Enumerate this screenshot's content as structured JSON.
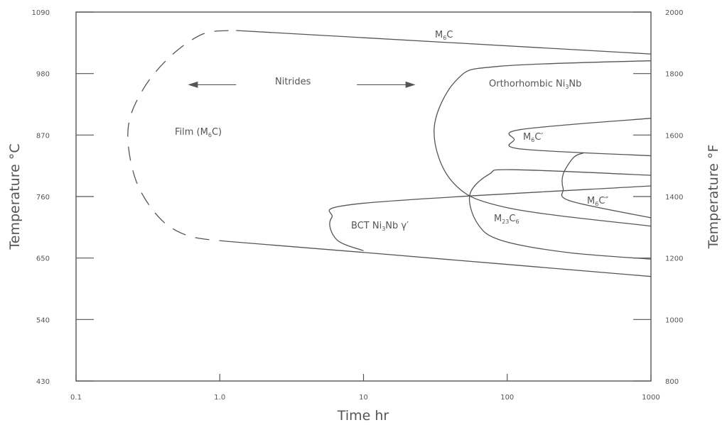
{
  "chart_data": {
    "type": "line",
    "title": "",
    "xlabel": "Time hr",
    "ylabel_left": "Temperature °C",
    "ylabel_right": "Temperature °F",
    "x_scale": "log",
    "xlim": [
      0.1,
      1000
    ],
    "ylim_c": [
      430,
      1090
    ],
    "ylim_f": [
      800,
      2000
    ],
    "x_ticks": [
      "0.1",
      "1.0",
      "10",
      "100",
      "1000"
    ],
    "y_ticks_c": [
      "430",
      "540",
      "650",
      "760",
      "870",
      "980",
      "1090"
    ],
    "y_ticks_f": [
      "800",
      "1000",
      "1200",
      "1400",
      "1600",
      "1800",
      "2000"
    ],
    "grid": false,
    "labels": {
      "m6c": {
        "base": "M",
        "sub": "6",
        "rest": "C"
      },
      "nitrides": "Nitrides",
      "film": {
        "pre": "Film (M",
        "sub": "6",
        "post": "C)"
      },
      "ortho": {
        "pre": "Orthorhombic Ni",
        "sub": "3",
        "post": "Nb"
      },
      "m6c_prime": {
        "base": "M",
        "sub": "6",
        "rest": "C′"
      },
      "m6c_dprime": {
        "base": "M",
        "sub": "6",
        "rest": "C″"
      },
      "m23c6": {
        "base": "M",
        "sub1": "23",
        "mid": "C",
        "sub2": "6"
      },
      "bct": {
        "pre": "BCT  Ni",
        "sub": "3",
        "post": "Nb γ′"
      }
    },
    "series": [
      {
        "id": "film-boundary",
        "style": "dashed",
        "points": [
          [
            1.15,
            1057
          ],
          [
            0.75,
            1050
          ],
          [
            0.45,
            1010
          ],
          [
            0.29,
            950
          ],
          [
            0.23,
            880
          ],
          [
            0.26,
            790
          ],
          [
            0.38,
            722
          ],
          [
            0.6,
            690
          ],
          [
            1.1,
            680
          ]
        ]
      },
      {
        "id": "film-upper",
        "points": [
          [
            1.3,
            1057
          ],
          [
            1000,
            1015
          ]
        ]
      },
      {
        "id": "film-lower",
        "points": [
          [
            1.1,
            680
          ],
          [
            10,
            660
          ],
          [
            1000,
            617
          ]
        ]
      },
      {
        "id": "ortho",
        "points": [
          [
            1000,
            1003
          ],
          [
            88,
            993
          ],
          [
            45,
            970
          ],
          [
            31,
            880
          ],
          [
            42,
            785
          ],
          [
            100,
            740
          ],
          [
            1000,
            707
          ]
        ]
      },
      {
        "id": "m6c-prime",
        "points": [
          [
            1000,
            900
          ],
          [
            125,
            880
          ],
          [
            112,
            862
          ],
          [
            125,
            845
          ],
          [
            1000,
            833
          ]
        ]
      },
      {
        "id": "m6c-dprime",
        "points": [
          [
            340,
            838
          ],
          [
            290,
            830
          ],
          [
            245,
            800
          ],
          [
            245,
            774
          ],
          [
            275,
            752
          ],
          [
            1000,
            722
          ]
        ]
      },
      {
        "id": "m23c6",
        "points": [
          [
            1000,
            798
          ],
          [
            110,
            808
          ],
          [
            75,
            800
          ],
          [
            55,
            764
          ],
          [
            62,
            712
          ],
          [
            90,
            682
          ],
          [
            260,
            660
          ],
          [
            1000,
            648
          ]
        ]
      },
      {
        "id": "bct",
        "points": [
          [
            1000,
            779
          ],
          [
            10,
            748
          ],
          [
            6,
            722
          ],
          [
            6.5,
            683
          ],
          [
            10,
            663
          ]
        ]
      }
    ],
    "annotations": [
      {
        "id": "nitrides-arrow-left",
        "from": [
          1.3,
          960
        ],
        "to": [
          0.6,
          960
        ]
      },
      {
        "id": "nitrides-arrow-right",
        "from": [
          9,
          960
        ],
        "to": [
          23,
          960
        ]
      }
    ]
  }
}
